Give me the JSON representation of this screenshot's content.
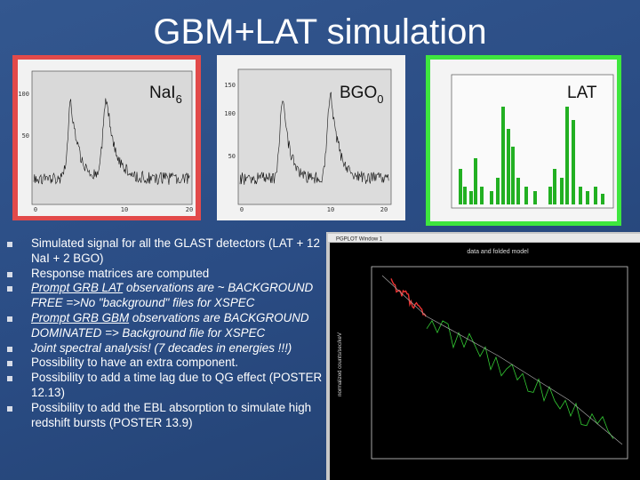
{
  "title": "GBM+LAT simulation",
  "panels": [
    {
      "name": "NaI",
      "sub": "6",
      "yticks": [
        100,
        50
      ],
      "xticks": [
        0,
        10,
        20
      ]
    },
    {
      "name": "BGO",
      "sub": "0",
      "yticks": [
        150,
        100,
        50
      ],
      "xticks": [
        0,
        10,
        20
      ]
    },
    {
      "name": "LAT"
    }
  ],
  "bullets": [
    {
      "text": "Simulated signal for all the GLAST detectors (LAT + 12 NaI + 2 BGO)"
    },
    {
      "text": "Response matrices are computed"
    },
    {
      "lead": "Prompt GRB LAT",
      "text": "observations are ~ BACKGROUND FREE =>No \"background\" files for XSPEC",
      "italic": true
    },
    {
      "lead": "Prompt GRB GBM",
      "text": "observations are BACKGROUND DOMINATED => Background file for XSPEC",
      "italic": true
    },
    {
      "text": "Joint spectral analysis! (7 decades in energies !!!)",
      "italic": true
    },
    {
      "text": "Possibility to have an extra component."
    },
    {
      "text": "Possibility to add a time lag due to QG effect (POSTER 12.13)"
    },
    {
      "text": "Possibility to add the EBL absorption to simulate high redshift bursts (POSTER 13.9)"
    }
  ],
  "window": {
    "titlebar": "PGPLOT Window 1",
    "plot_title": "data and folded model",
    "ylabel": "normalized counts/sec/keV"
  }
}
